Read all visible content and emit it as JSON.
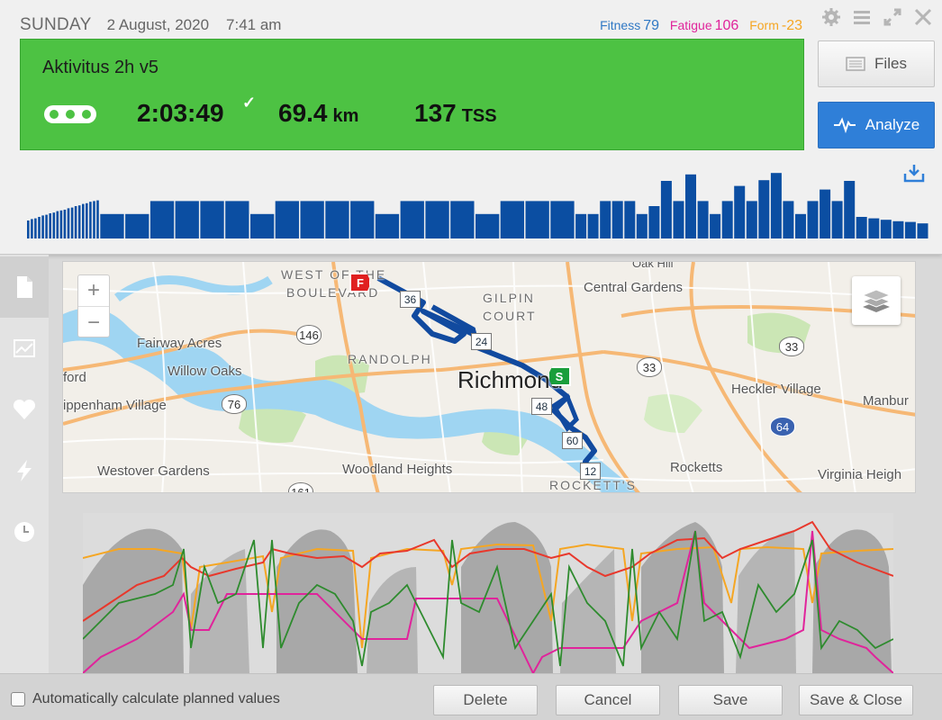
{
  "header": {
    "day": "SUNDAY",
    "date": "2 August, 2020",
    "time": "7:41 am"
  },
  "metrics": {
    "fitness_label": "Fitness",
    "fitness_value": "79",
    "fatigue_label": "Fatigue",
    "fatigue_value": "106",
    "form_label": "Form",
    "form_value": "-23"
  },
  "workout": {
    "title": "Aktivitus 2h v5",
    "duration": "2:03:49",
    "distance": "69.4",
    "distance_unit": "km",
    "tss": "137",
    "tss_unit": "TSS",
    "color": "#4dc243"
  },
  "buttons": {
    "files": "Files",
    "analyze": "Analyze"
  },
  "icons": {
    "settings": "gear-icon",
    "menu": "hamburger-icon",
    "expand": "expand-icon",
    "close": "close-icon",
    "sport": "bike-chain-icon",
    "download": "download-icon"
  },
  "sidebar": [
    "document-icon",
    "chart-icon",
    "heart-icon",
    "lightning-icon",
    "clock-icon"
  ],
  "map": {
    "labels": {
      "west_of_the_boulevard_1": "WEST OF THE",
      "west_of_the_boulevard_2": "BOULEVARD",
      "gilpin_1": "GILPIN",
      "gilpin_2": "COURT",
      "central_gardens": "Central Gardens",
      "fairway_acres": "Fairway Acres",
      "randolph": "RANDOLPH",
      "willow_oaks": "Willow Oaks",
      "richmond": "Richmond",
      "ford": "ford",
      "ippenham": "ippenham Village",
      "heckler": "Heckler Village",
      "manbur": "Manbur",
      "westover": "Westover Gardens",
      "woodland": "Woodland Heights",
      "rocketts": "Rocketts",
      "virginia": "Virginia Heigh",
      "rocketts_district": "ROCKETT'S",
      "oak_hill": "Oak Hill"
    },
    "start_flag": "S",
    "finish_flag": "F",
    "markers": [
      "36",
      "24",
      "48",
      "60",
      "12"
    ],
    "route_shields": [
      "146",
      "76",
      "33",
      "33",
      "64",
      "161"
    ]
  },
  "power_profile": [
    0.25,
    0.27,
    0.28,
    0.3,
    0.32,
    0.33,
    0.35,
    0.36,
    0.38,
    0.39,
    0.4,
    0.42,
    0.43,
    0.45,
    0.46,
    0.48,
    0.49,
    0.51,
    0.52,
    0.53,
    0.34,
    0.34,
    0.52,
    0.52,
    0.52,
    0.52,
    0.34,
    0.52,
    0.52,
    0.52,
    0.52,
    0.34,
    0.52,
    0.52,
    0.52,
    0.34,
    0.52,
    0.52,
    0.52,
    0.34,
    0.34,
    0.52,
    0.52,
    0.52,
    0.34,
    0.45,
    0.8,
    0.52,
    0.89,
    0.52,
    0.34,
    0.52,
    0.73,
    0.52,
    0.81,
    0.91,
    0.52,
    0.34,
    0.52,
    0.68,
    0.52,
    0.8,
    0.3,
    0.28,
    0.26,
    0.24,
    0.23,
    0.21
  ],
  "footer": {
    "auto_calc_label": "Automatically calculate planned values",
    "delete": "Delete",
    "cancel": "Cancel",
    "save": "Save",
    "save_close": "Save & Close"
  }
}
